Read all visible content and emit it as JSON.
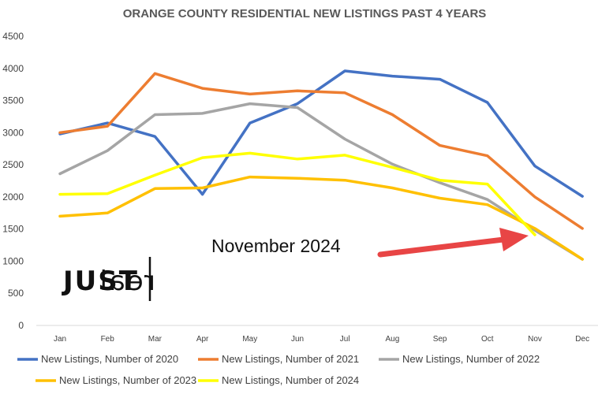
{
  "chart_data": {
    "type": "line",
    "title": "ORANGE COUNTY RESIDENTIAL NEW LISTINGS PAST 4 YEARS",
    "categories": [
      "Jan",
      "Feb",
      "Mar",
      "Apr",
      "May",
      "Jun",
      "Jul",
      "Aug",
      "Sep",
      "Oct",
      "Nov",
      "Dec"
    ],
    "ylim": [
      0,
      4500
    ],
    "yticks": [
      "0",
      "500",
      "1000",
      "1500",
      "2000",
      "2500",
      "3000",
      "3500",
      "4000",
      "4500"
    ],
    "grid": false,
    "legend_position": "bottom",
    "series": [
      {
        "name": "New Listings, Number of 2020",
        "color": "#4472C4",
        "values": [
          2980,
          3150,
          2940,
          2040,
          3150,
          3450,
          3960,
          3880,
          3830,
          3470,
          2480,
          2010
        ]
      },
      {
        "name": "New Listings, Number of 2021",
        "color": "#ED7D31",
        "values": [
          3000,
          3100,
          3920,
          3690,
          3600,
          3650,
          3620,
          3280,
          2800,
          2640,
          2000,
          1510
        ]
      },
      {
        "name": "New Listings, Number of 2022",
        "color": "#A5A5A5",
        "values": [
          2360,
          2720,
          3280,
          3300,
          3450,
          3390,
          2900,
          2510,
          2220,
          1960,
          1480,
          1030
        ]
      },
      {
        "name": "New Listings, Number of 2023",
        "color": "#FFC000",
        "values": [
          1700,
          1750,
          2130,
          2140,
          2310,
          2290,
          2260,
          2140,
          1980,
          1880,
          1510,
          1030
        ]
      },
      {
        "name": "New Listings, Number of 2024",
        "color": "#FFFF00",
        "values": [
          2040,
          2050,
          2340,
          2610,
          2680,
          2590,
          2650,
          2460,
          2260,
          2200,
          1410,
          null
        ]
      }
    ],
    "annotation": {
      "text": "November 2024",
      "arrow_color": "#E84545"
    }
  },
  "logo": {
    "bold_part": "JUST",
    "light_part": "real"
  }
}
